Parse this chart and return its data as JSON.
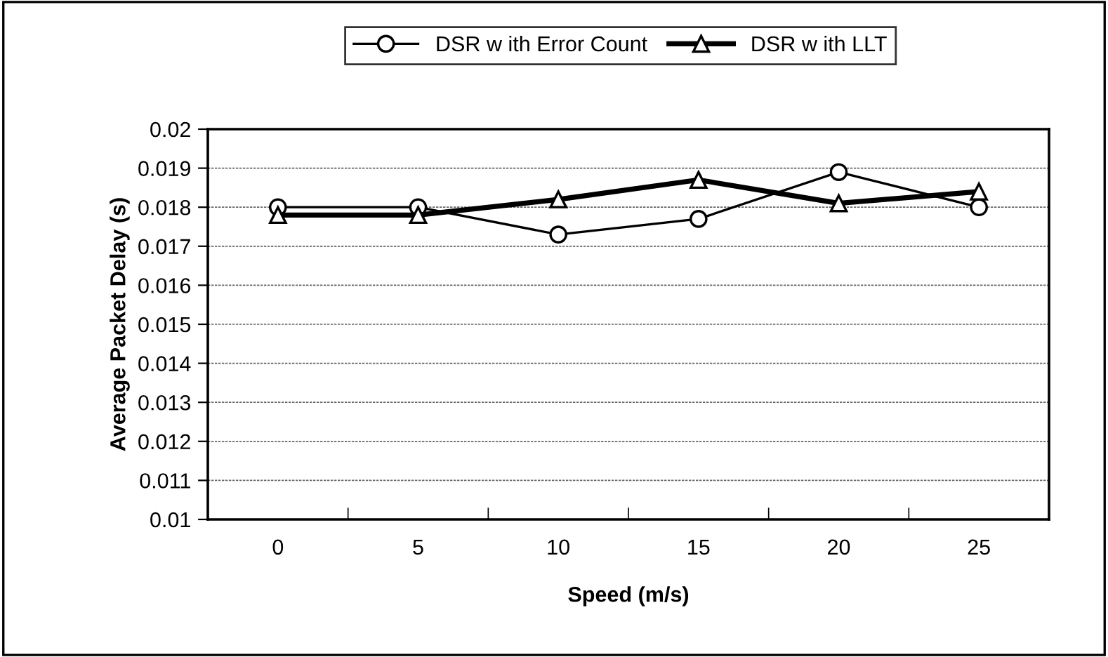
{
  "chart_data": {
    "type": "line",
    "xlabel": "Speed (m/s)",
    "ylabel": "Average Packet Delay (s)",
    "categories": [
      "0",
      "5",
      "10",
      "15",
      "20",
      "25"
    ],
    "series": [
      {
        "name": "DSR w ith Error Count",
        "color": "#000000",
        "marker": "circle",
        "values": [
          0.018,
          0.018,
          0.0173,
          0.0177,
          0.0189,
          0.018
        ]
      },
      {
        "name": "DSR w ith LLT",
        "color": "#000000",
        "marker": "triangle",
        "values": [
          0.0178,
          0.0178,
          0.0182,
          0.0187,
          0.0181,
          0.0184
        ]
      }
    ],
    "ylim": [
      0.01,
      0.02
    ],
    "yticks": [
      0.01,
      0.011,
      0.012,
      0.013,
      0.014,
      0.015,
      0.016,
      0.017,
      0.018,
      0.019,
      0.02
    ],
    "grid": "y",
    "legend": "top",
    "line_style": "solid"
  }
}
